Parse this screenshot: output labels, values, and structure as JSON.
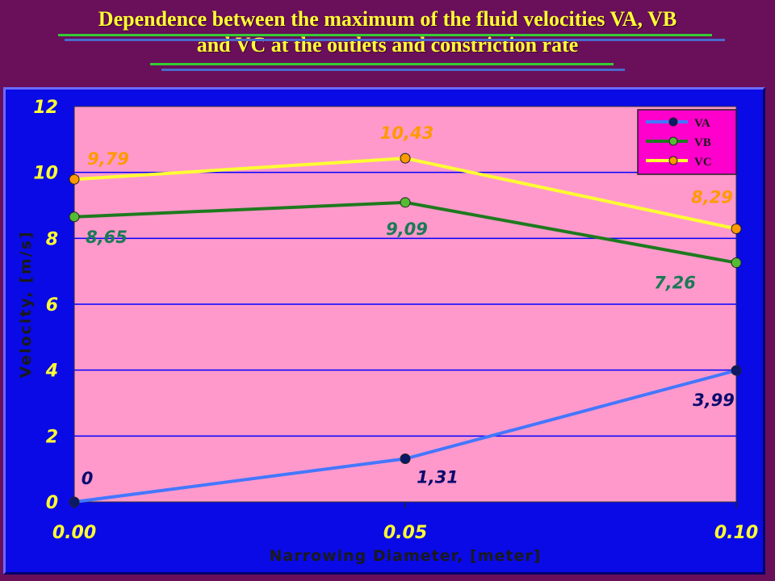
{
  "slide": {
    "title_line1": "Dependence between the maximum of the fluid velocities VA, VB",
    "title_line2": "and VC at the outlets and constriction rate"
  },
  "chart_data": {
    "type": "line",
    "x": [
      0.0,
      0.05,
      0.1
    ],
    "x_tick_labels": [
      "0.00",
      "0.05",
      "0.10"
    ],
    "y_ticks": [
      0,
      2,
      4,
      6,
      8,
      10,
      12
    ],
    "xlim": [
      0,
      0.1
    ],
    "ylim": [
      0,
      12
    ],
    "xlabel": "Narrowing Diameter, [meter]",
    "ylabel": "Velocity, [m/s]",
    "grid": "horizontal",
    "legend_position": "top-right",
    "series": [
      {
        "name": "VA",
        "values": [
          0,
          1.31,
          3.99
        ],
        "labels": [
          "0",
          "1,31",
          "3,99"
        ],
        "line_color": "#4477ff",
        "marker_color": "#0a1a66",
        "label_color": "#0a0a6e"
      },
      {
        "name": "VB",
        "values": [
          8.65,
          9.09,
          7.26
        ],
        "labels": [
          "8,65",
          "9,09",
          "7,26"
        ],
        "line_color": "#1e7a1e",
        "marker_color": "#55bb33",
        "label_color": "#1a7a55"
      },
      {
        "name": "VC",
        "values": [
          9.79,
          10.43,
          8.29
        ],
        "labels": [
          "9,79",
          "10,43",
          "8,29"
        ],
        "line_color": "#ffff33",
        "marker_color": "#ff9900",
        "label_color": "#ff9900"
      }
    ],
    "colors": {
      "plot_background": "#ff99cc",
      "frame_background": "#0a0ae6",
      "gridline": "#0000ff",
      "tick_text": "#ffff33",
      "legend_background": "#ff00cc"
    }
  }
}
